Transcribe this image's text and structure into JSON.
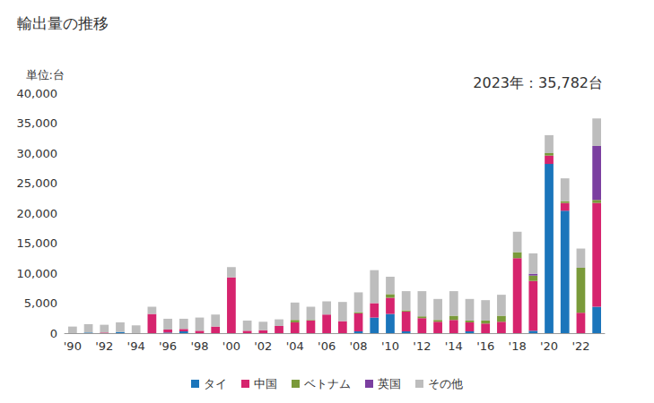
{
  "chart_data": {
    "type": "bar",
    "title": "輸出量の推移",
    "ylabel": "単位:台",
    "annotation": "2023年：35,782台",
    "stacked": true,
    "grid": false,
    "legend": "bottom",
    "categories": [
      "'90",
      null,
      "'92",
      null,
      "'94",
      null,
      "'96",
      null,
      "'98",
      null,
      "'00",
      null,
      "'02",
      null,
      "'04",
      null,
      "'06",
      null,
      "'08",
      null,
      "'10",
      null,
      "'12",
      null,
      "'14",
      null,
      "'16",
      null,
      "'18",
      null,
      "'20",
      null,
      "'22",
      null
    ],
    "series": [
      {
        "name": "タイ",
        "color": "#1b75bb",
        "values": [
          0,
          100,
          0,
          200,
          0,
          0,
          100,
          300,
          0,
          0,
          0,
          0,
          0,
          0,
          0,
          0,
          0,
          0,
          300,
          2600,
          3200,
          300,
          0,
          0,
          0,
          300,
          0,
          0,
          0,
          400,
          28200,
          20400,
          0,
          4400
        ]
      },
      {
        "name": "中国",
        "color": "#d6246e",
        "values": [
          0,
          0,
          100,
          0,
          0,
          3200,
          500,
          400,
          400,
          1100,
          9300,
          400,
          500,
          1200,
          1800,
          2100,
          3100,
          2000,
          3000,
          2400,
          2700,
          3300,
          2500,
          1900,
          2200,
          1500,
          1600,
          1900,
          12500,
          8300,
          1400,
          1300,
          3400,
          17300
        ]
      },
      {
        "name": "ベトナム",
        "color": "#7a9a3a",
        "values": [
          0,
          0,
          0,
          0,
          0,
          0,
          0,
          0,
          0,
          0,
          0,
          0,
          0,
          0,
          400,
          100,
          0,
          0,
          200,
          0,
          600,
          200,
          300,
          300,
          700,
          300,
          500,
          1000,
          1000,
          900,
          400,
          300,
          7500,
          500
        ]
      },
      {
        "name": "英国",
        "color": "#7b3fa0",
        "values": [
          0,
          0,
          0,
          0,
          0,
          0,
          0,
          0,
          0,
          0,
          0,
          0,
          0,
          0,
          0,
          0,
          0,
          0,
          0,
          0,
          0,
          0,
          0,
          0,
          0,
          0,
          0,
          0,
          0,
          300,
          0,
          0,
          0,
          9000
        ]
      },
      {
        "name": "その他",
        "color": "#bdbdbd",
        "values": [
          1100,
          1400,
          1300,
          1600,
          1300,
          1200,
          1800,
          1700,
          2200,
          2000,
          1700,
          1700,
          1400,
          1100,
          2900,
          2200,
          2200,
          3200,
          3300,
          5500,
          2900,
          3200,
          4200,
          3500,
          4100,
          3600,
          3400,
          3500,
          3400,
          3400,
          3000,
          3800,
          3200,
          4582
        ]
      }
    ],
    "ylim": [
      0,
      40000
    ],
    "yticks": [
      0,
      {
        "value": 5000,
        "label": "5,000"
      },
      {
        "value": 10000,
        "label": "10,000"
      },
      {
        "value": 15000,
        "label": "15,000"
      },
      {
        "value": 20000,
        "label": "20,000"
      },
      {
        "value": 25000,
        "label": "25,000"
      },
      {
        "value": 30000,
        "label": "30,000"
      },
      {
        "value": 35000,
        "label": "35,000"
      },
      {
        "value": 40000,
        "label": "40,000"
      }
    ]
  }
}
